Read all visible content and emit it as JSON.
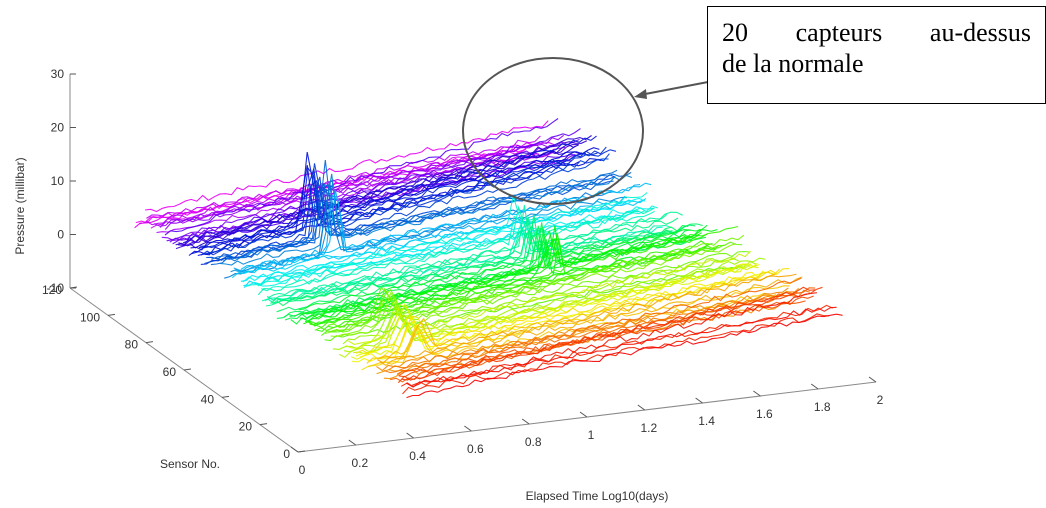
{
  "chart_data": {
    "type": "line",
    "subtype": "3d-waterfall",
    "xlabel": "Elapsed Time Log10(days)",
    "ylabel": "Sensor No.",
    "zlabel": "Pressure (millibar)",
    "x_ticks": [
      "0",
      "0.2",
      "0.4",
      "0.6",
      "0.8",
      "1",
      "1.2",
      "1.4",
      "1.6",
      "1.8",
      "2"
    ],
    "y_ticks": [
      "0",
      "20",
      "40",
      "60",
      "80",
      "100",
      "120"
    ],
    "z_ticks": [
      "-10",
      "0",
      "10",
      "20",
      "30"
    ],
    "xlim": [
      0,
      2
    ],
    "ylim": [
      0,
      120
    ],
    "zlim": [
      -10,
      30
    ],
    "colormap": "jet (red at low sensor numbers to magenta at high sensor numbers)",
    "series_count": 120,
    "grid": false,
    "annotation": {
      "words": [
        "20",
        "capteurs",
        "au-dessus"
      ],
      "line2": "de la normale"
    }
  }
}
